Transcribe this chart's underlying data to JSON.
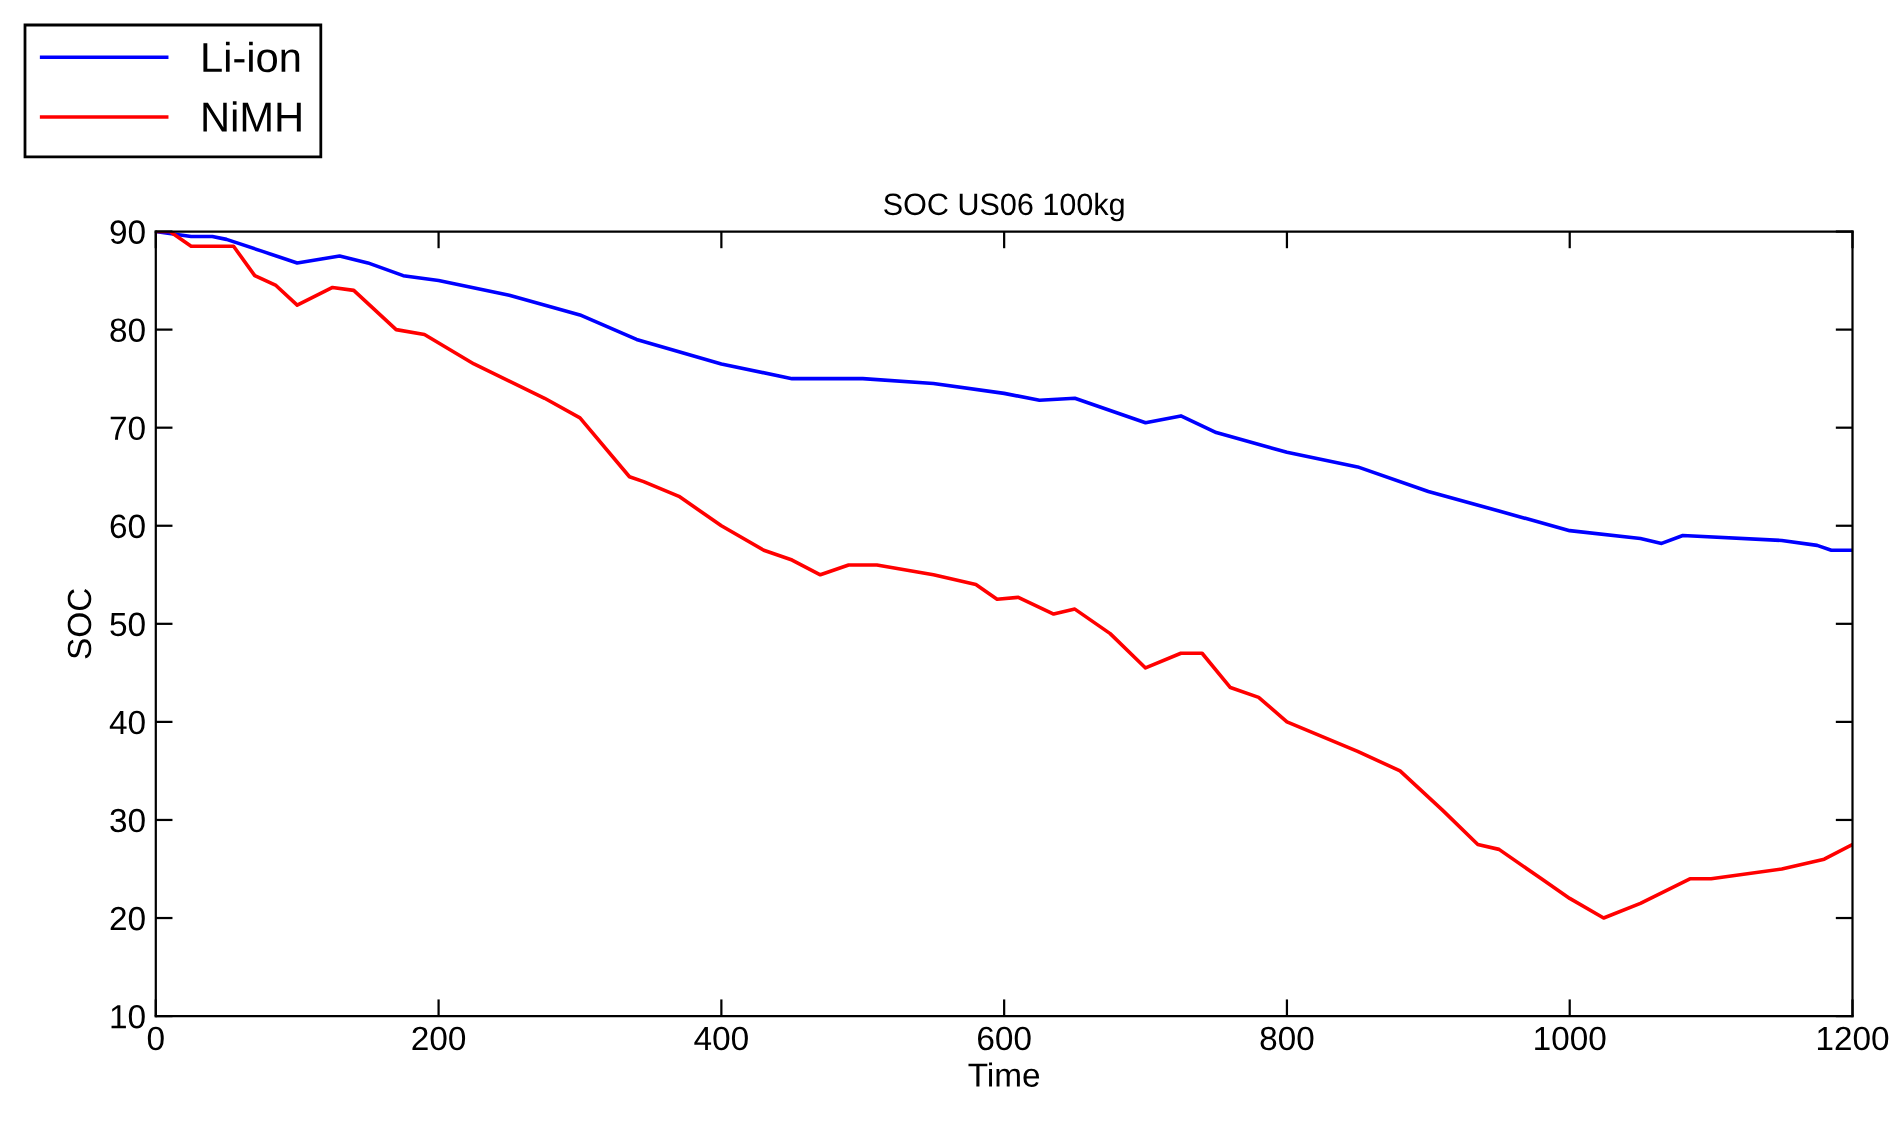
{
  "chart_data": {
    "type": "line",
    "title": "SOC US06 100kg",
    "xlabel": "Time",
    "ylabel": "SOC",
    "xlim": [
      0,
      1200
    ],
    "xticks": [
      0,
      200,
      400,
      600,
      800,
      1000,
      1200
    ],
    "ylim": [
      10,
      90
    ],
    "yticks": [
      10,
      20,
      30,
      40,
      50,
      60,
      70,
      80,
      90
    ],
    "grid": false,
    "legend": "top left",
    "line_style": "solid",
    "marker": "none",
    "series": [
      {
        "name": "Li-ion",
        "color": "#0000ff",
        "x": [
          0,
          25,
          40,
          50,
          75,
          100,
          130,
          150,
          175,
          200,
          250,
          300,
          340,
          400,
          450,
          475,
          500,
          550,
          600,
          625,
          650,
          700,
          725,
          750,
          800,
          850,
          900,
          950,
          1000,
          1050,
          1065,
          1080,
          1150,
          1175,
          1185,
          1200
        ],
        "values": [
          90,
          89.5,
          89.5,
          89.2,
          88,
          86.8,
          87.5,
          86.8,
          85.5,
          85,
          83.5,
          81.5,
          79,
          76.5,
          75,
          75,
          75,
          74.5,
          73.5,
          72.8,
          73,
          70.5,
          71.2,
          69.5,
          67.5,
          66,
          63.5,
          61.5,
          59.5,
          58.7,
          58.2,
          59,
          58.5,
          58,
          57.5,
          57.5
        ]
      },
      {
        "name": "NiMH",
        "color": "#ff0000",
        "x": [
          0,
          10,
          25,
          40,
          55,
          70,
          85,
          100,
          125,
          140,
          170,
          190,
          225,
          275,
          300,
          335,
          345,
          370,
          400,
          430,
          450,
          470,
          490,
          510,
          550,
          580,
          595,
          610,
          635,
          650,
          675,
          700,
          725,
          740,
          760,
          780,
          800,
          850,
          880,
          910,
          935,
          950,
          980,
          1000,
          1024,
          1050,
          1085,
          1100,
          1150,
          1180,
          1200
        ],
        "values": [
          90,
          90,
          88.5,
          88.5,
          88.5,
          85.5,
          84.5,
          82.5,
          84.3,
          84,
          80,
          79.5,
          76.5,
          73,
          71,
          65,
          64.5,
          63,
          60,
          57.5,
          56.5,
          55,
          56,
          56,
          55,
          54,
          52.5,
          52.7,
          51,
          51.5,
          49,
          45.5,
          47,
          47,
          43.5,
          42.5,
          40,
          37,
          35,
          31,
          27.5,
          27,
          24,
          22,
          20,
          21.5,
          24,
          24,
          25,
          26,
          27.5
        ]
      }
    ]
  }
}
